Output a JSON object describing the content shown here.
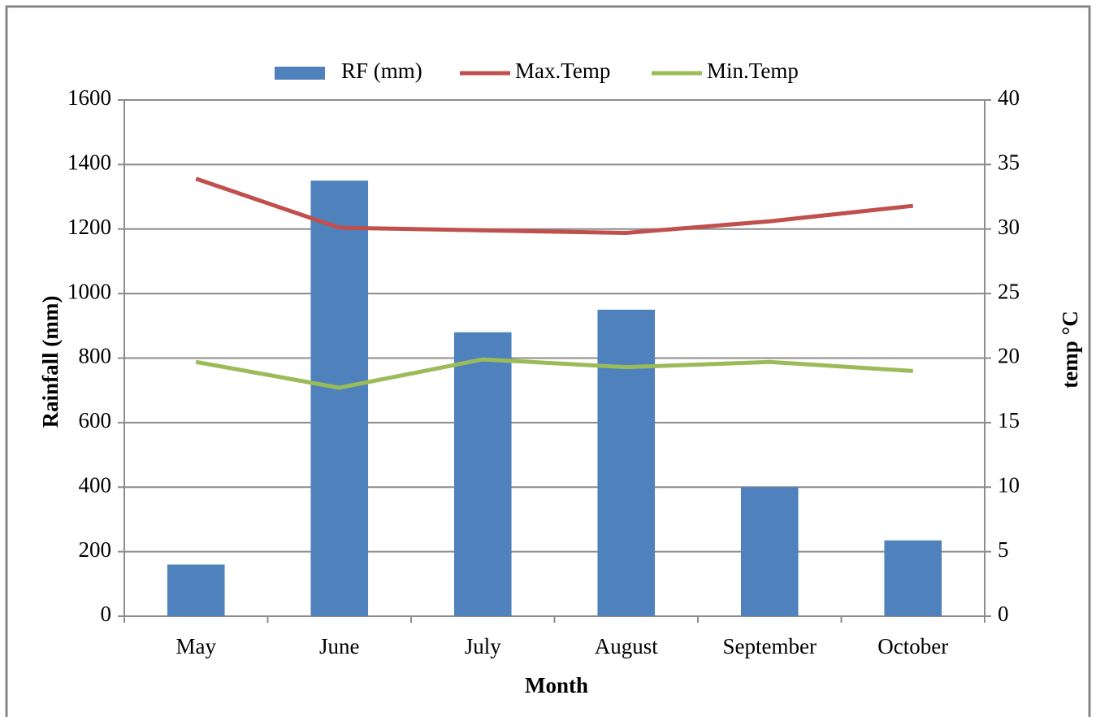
{
  "chart_data": {
    "type": "bar",
    "x_label": "Month",
    "y_label": "Rainfall (mm)",
    "y2_label": "temp °C",
    "categories": [
      "May",
      "June",
      "July",
      "August",
      "September",
      "October"
    ],
    "series": [
      {
        "name": "RF (mm)",
        "type": "bar",
        "color": "#4f81bd",
        "values": [
          160,
          1350,
          880,
          950,
          400,
          235
        ]
      },
      {
        "name": "Max.Temp",
        "type": "line",
        "axis": "y2",
        "color": "#c0504d",
        "values": [
          33.9,
          30.1,
          29.9,
          29.7,
          30.6,
          31.8
        ]
      },
      {
        "name": "Min.Temp",
        "type": "line",
        "axis": "y2",
        "color": "#9bbb59",
        "values": [
          19.7,
          17.7,
          19.9,
          19.3,
          19.7,
          19.0
        ]
      }
    ],
    "ylim": [
      0,
      1600
    ],
    "yticks": [
      0,
      200,
      400,
      600,
      800,
      1000,
      1200,
      1400,
      1600
    ],
    "y2lim": [
      0,
      40
    ],
    "y2ticks": [
      0,
      5,
      10,
      15,
      20,
      25,
      30,
      35,
      40
    ],
    "grid": true,
    "legend": "top"
  }
}
